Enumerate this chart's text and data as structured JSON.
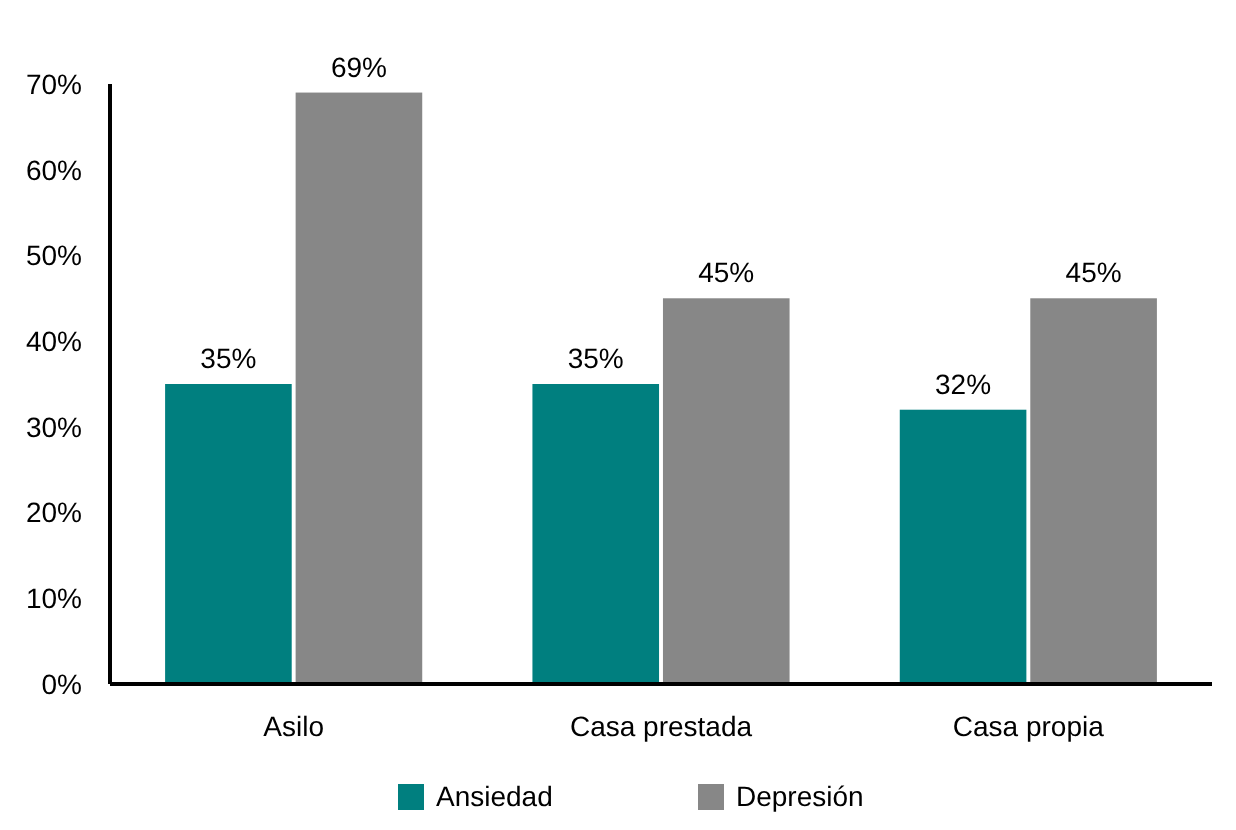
{
  "chart_data": {
    "type": "bar",
    "categories": [
      "Asilo",
      "Casa prestada",
      "Casa propia"
    ],
    "series": [
      {
        "name": "Ansiedad",
        "color": "#007f7f",
        "values": [
          35,
          35,
          32
        ],
        "value_labels": [
          "35%",
          "35%",
          "32%"
        ]
      },
      {
        "name": "Depresión",
        "color": "#878787",
        "values": [
          69,
          45,
          45
        ],
        "value_labels": [
          "69%",
          "45%",
          "45%"
        ]
      }
    ],
    "ylim": [
      0,
      70
    ],
    "yticks": [
      {
        "value": 0,
        "label": "0%"
      },
      {
        "value": 10,
        "label": "10%"
      },
      {
        "value": 20,
        "label": "20%"
      },
      {
        "value": 30,
        "label": "30%"
      },
      {
        "value": 40,
        "label": "40%"
      },
      {
        "value": 50,
        "label": "50%"
      },
      {
        "value": 60,
        "label": "60%"
      },
      {
        "value": 70,
        "label": "70%"
      }
    ],
    "grid": false,
    "legend": "bottom"
  }
}
